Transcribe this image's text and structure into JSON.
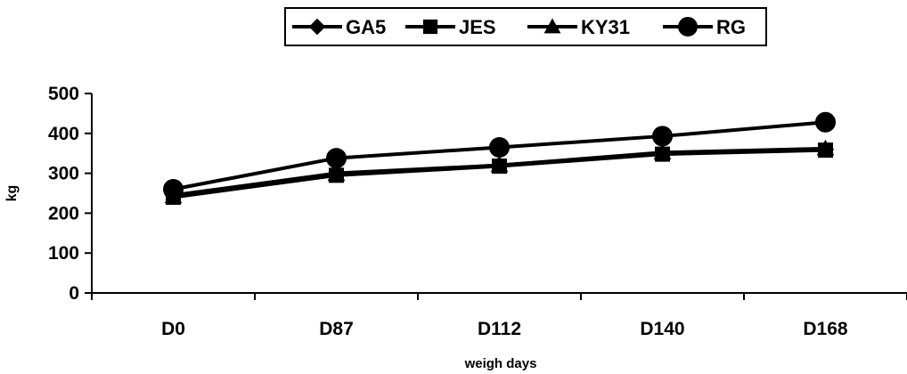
{
  "chart_data": {
    "type": "line",
    "title": "",
    "xlabel": "weigh days",
    "ylabel": "kg",
    "categories": [
      "D0",
      "D87",
      "D112",
      "D140",
      "D168"
    ],
    "ylim": [
      0,
      500
    ],
    "yticks": [
      0,
      100,
      200,
      300,
      400,
      500
    ],
    "grid": false,
    "legend_position": "top-center",
    "series": [
      {
        "name": "GA5",
        "marker": "diamond",
        "values": [
          245,
          300,
          320,
          350,
          360
        ]
      },
      {
        "name": "JES",
        "marker": "square",
        "values": [
          240,
          295,
          318,
          348,
          358
        ]
      },
      {
        "name": "KY31",
        "marker": "triangle",
        "values": [
          242,
          298,
          320,
          352,
          362
        ]
      },
      {
        "name": "RG",
        "marker": "circle",
        "values": [
          260,
          338,
          365,
          393,
          428
        ]
      }
    ],
    "line_color": "#000000"
  }
}
